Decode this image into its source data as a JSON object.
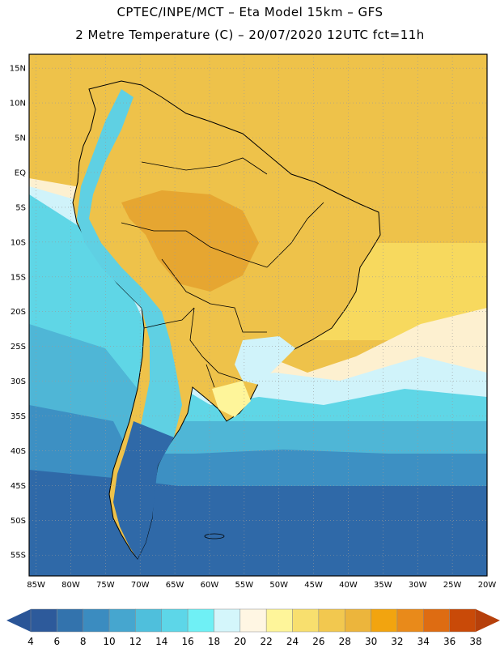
{
  "titles": {
    "line1": "CPTEC/INPE/MCT –  Eta Model 15km – GFS",
    "line2": "2 Metre Temperature (C) – 20/07/2020 12UTC fct=11h"
  },
  "map": {
    "region": "South America",
    "lat_range": [
      -58,
      17
    ],
    "lon_range": [
      -86,
      -20
    ],
    "lat_ticks": [
      {
        "v": 15,
        "label": "15N"
      },
      {
        "v": 10,
        "label": "10N"
      },
      {
        "v": 5,
        "label": "5N"
      },
      {
        "v": 0,
        "label": "EQ"
      },
      {
        "v": -5,
        "label": "5S"
      },
      {
        "v": -10,
        "label": "10S"
      },
      {
        "v": -15,
        "label": "15S"
      },
      {
        "v": -20,
        "label": "20S"
      },
      {
        "v": -25,
        "label": "25S"
      },
      {
        "v": -30,
        "label": "30S"
      },
      {
        "v": -35,
        "label": "35S"
      },
      {
        "v": -40,
        "label": "40S"
      },
      {
        "v": -45,
        "label": "45S"
      },
      {
        "v": -50,
        "label": "50S"
      },
      {
        "v": -55,
        "label": "55S"
      }
    ],
    "lon_ticks": [
      {
        "v": -85,
        "label": "85W"
      },
      {
        "v": -80,
        "label": "80W"
      },
      {
        "v": -75,
        "label": "75W"
      },
      {
        "v": -70,
        "label": "70W"
      },
      {
        "v": -65,
        "label": "65W"
      },
      {
        "v": -60,
        "label": "60W"
      },
      {
        "v": -55,
        "label": "55W"
      },
      {
        "v": -50,
        "label": "50W"
      },
      {
        "v": -45,
        "label": "45W"
      },
      {
        "v": -40,
        "label": "40W"
      },
      {
        "v": -35,
        "label": "35W"
      },
      {
        "v": -30,
        "label": "30W"
      },
      {
        "v": -25,
        "label": "25W"
      },
      {
        "v": -20,
        "label": "20W"
      }
    ],
    "colors": {
      "ocean_cold": "#2a5f9e",
      "ocean_cool": "#3c7fb8",
      "ocean_mid": "#4aa9cf",
      "ocean_warm": "#5fd0e3",
      "ocean_tropic": "#f6d25a",
      "land": "#eec24a",
      "land_hot": "#e6a631",
      "andes": "#4fc7de",
      "border": "#000000"
    }
  },
  "colorbar": {
    "labels": [
      "4",
      "6",
      "8",
      "10",
      "12",
      "14",
      "16",
      "18",
      "20",
      "22",
      "24",
      "26",
      "28",
      "30",
      "32",
      "34",
      "36",
      "38"
    ],
    "colors": [
      "#2d5a9b",
      "#3373ad",
      "#3b8cc0",
      "#46a6cf",
      "#4fbfdc",
      "#5dd6e8",
      "#6ff0f5",
      "#d4f6fb",
      "#fff6e3",
      "#fef59a",
      "#f8df6e",
      "#f2c84f",
      "#ecb53c",
      "#f2a40f",
      "#e98a1a",
      "#de6c12",
      "#c94a08"
    ],
    "left_arrow_color": "#2a5597",
    "right_arrow_color": "#b6400b"
  }
}
